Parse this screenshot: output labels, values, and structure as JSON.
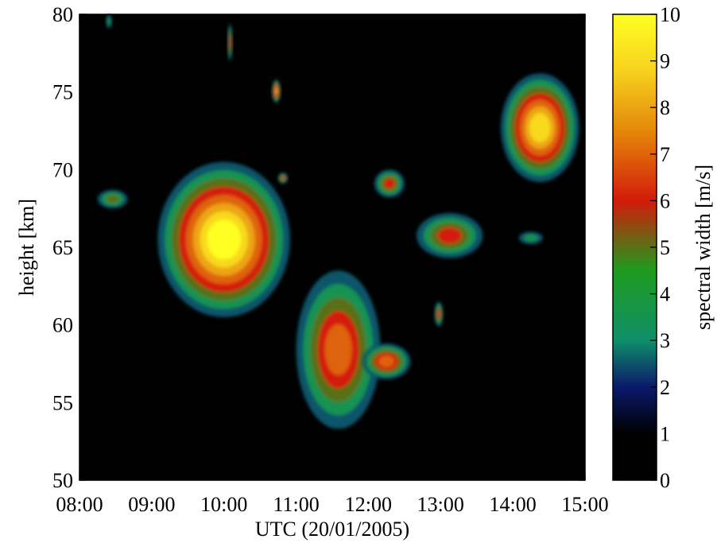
{
  "chart_data": {
    "type": "heatmap",
    "title": "",
    "xlabel": "UTC (20/01/2005)",
    "ylabel": "height [km]",
    "x_ticks": [
      "08:00",
      "09:00",
      "10:00",
      "11:00",
      "12:00",
      "13:00",
      "14:00",
      "15:00"
    ],
    "y_ticks": [
      "50",
      "55",
      "60",
      "65",
      "70",
      "75",
      "80"
    ],
    "xlim": [
      "08:00",
      "15:00"
    ],
    "ylim": [
      50,
      80
    ],
    "colorbar": {
      "label": "spectral width [m/s]",
      "ticks": [
        "0",
        "1",
        "2",
        "3",
        "4",
        "5",
        "6",
        "7",
        "8",
        "9",
        "10"
      ],
      "range": [
        0,
        10
      ]
    },
    "background_value": 0,
    "regions": [
      {
        "name": "echo-main-09-10h",
        "t_start": "09:05",
        "t_end": "10:55",
        "h_min": 60.5,
        "h_max": 70.5,
        "peak_width": 10
      },
      {
        "name": "echo-0830-68km",
        "t_start": "08:15",
        "t_end": "08:40",
        "h_min": 67.5,
        "h_max": 68.7,
        "peak_width": 5
      },
      {
        "name": "echo-1045-75km",
        "t_start": "10:40",
        "t_end": "10:47",
        "h_min": 74.3,
        "h_max": 75.8,
        "peak_width": 8
      },
      {
        "name": "echo-1050-69km",
        "t_start": "10:45",
        "t_end": "10:53",
        "h_min": 69.1,
        "h_max": 69.8,
        "peak_width": 6
      },
      {
        "name": "echo-11-12h-low",
        "t_start": "11:00",
        "t_end": "12:10",
        "h_min": 53.3,
        "h_max": 63.5,
        "peak_width": 7
      },
      {
        "name": "echo-1200-57km",
        "t_start": "11:55",
        "t_end": "12:35",
        "h_min": 56.5,
        "h_max": 58.8,
        "peak_width": 7
      },
      {
        "name": "echo-1210-69km",
        "t_start": "12:05",
        "t_end": "12:30",
        "h_min": 68.2,
        "h_max": 70.0,
        "peak_width": 6
      },
      {
        "name": "echo-1250-66km",
        "t_start": "12:40",
        "t_end": "13:35",
        "h_min": 64.3,
        "h_max": 67.2,
        "peak_width": 6
      },
      {
        "name": "echo-1300-61km",
        "t_start": "12:55",
        "t_end": "13:02",
        "h_min": 59.9,
        "h_max": 61.5,
        "peak_width": 6
      },
      {
        "name": "echo-14h-upper",
        "t_start": "13:50",
        "t_end": "14:55",
        "h_min": 69.2,
        "h_max": 76.2,
        "peak_width": 9
      },
      {
        "name": "echo-1415-65km",
        "t_start": "14:05",
        "t_end": "14:25",
        "h_min": 65.2,
        "h_max": 66.0,
        "peak_width": 4
      },
      {
        "name": "echo-1005-79km",
        "t_start": "10:03",
        "t_end": "10:07",
        "h_min": 77.0,
        "h_max": 79.4,
        "peak_width": 6
      },
      {
        "name": "echo-0825-80km",
        "t_start": "08:22",
        "t_end": "08:27",
        "h_min": 79.1,
        "h_max": 80.0,
        "peak_width": 4
      }
    ]
  }
}
